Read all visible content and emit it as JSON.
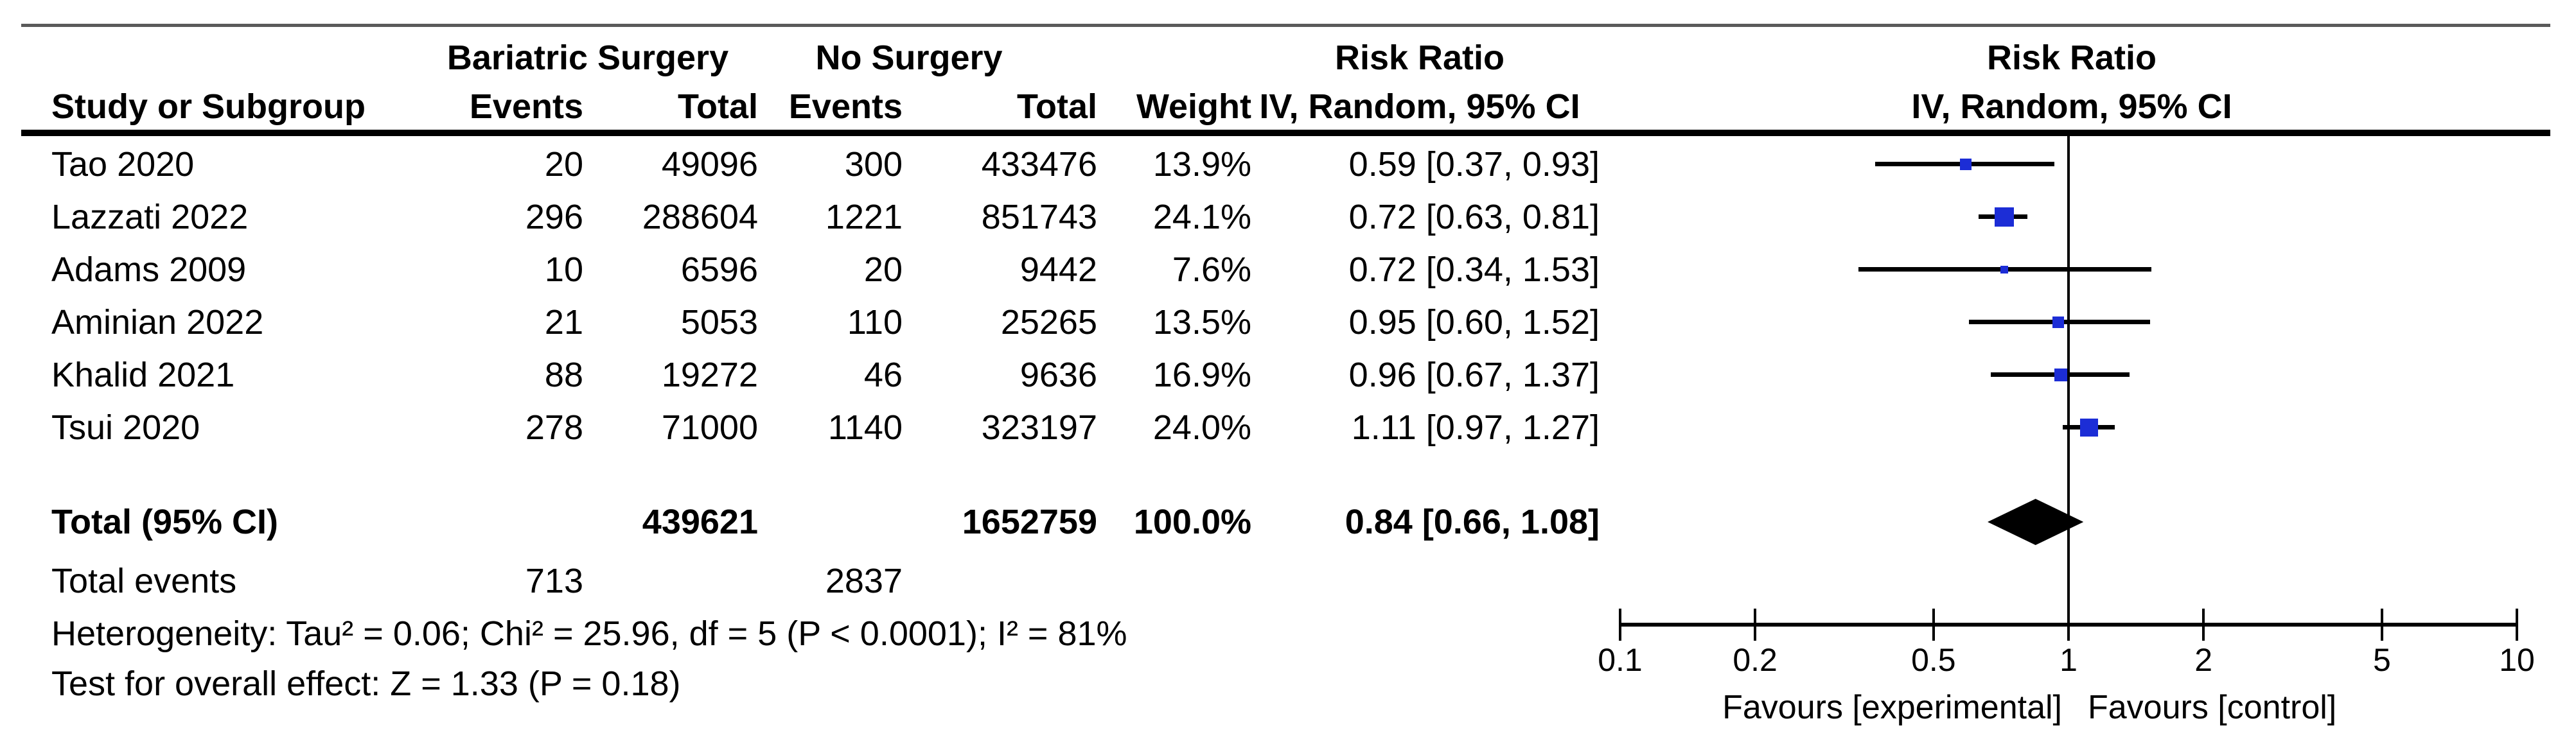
{
  "figure": {
    "background": "#ffffff",
    "marker_color": "#1c2dd6",
    "line_color": "#000000",
    "top_rule_color": "#5a5a5a"
  },
  "header": {
    "group1_label": "Bariatric Surgery",
    "group2_label": "No Surgery",
    "risk_ratio_label": "Risk Ratio",
    "method_label": "IV, Random, 95% CI",
    "plot_risk_ratio_label": "Risk Ratio",
    "plot_method_label": "IV, Random, 95% CI",
    "study_col_label": "Study or Subgroup",
    "events_col_label": "Events",
    "total_col_label": "Total",
    "weight_col_label": "Weight"
  },
  "chart_data": {
    "type": "forest",
    "x_scale": "log10",
    "xlim": [
      0.1,
      10
    ],
    "axis_ticks": [
      "0.1",
      "0.2",
      "0.5",
      "1",
      "2",
      "5",
      "10"
    ],
    "axis_tick_values": [
      0.1,
      0.2,
      0.5,
      1,
      2,
      5,
      10
    ],
    "favours_left": "Favours [experimental]",
    "favours_right": "Favours [control]",
    "studies": [
      {
        "name": "Tao 2020",
        "events1": "20",
        "total1": "49096",
        "events2": "300",
        "total2": "433476",
        "weight": "13.9%",
        "rr_ci": "0.59 [0.37, 0.93]",
        "rr": 0.59,
        "lo": 0.37,
        "hi": 0.93,
        "marker_size": 18
      },
      {
        "name": "Lazzati 2022",
        "events1": "296",
        "total1": "288604",
        "events2": "1221",
        "total2": "851743",
        "weight": "24.1%",
        "rr_ci": "0.72 [0.63, 0.81]",
        "rr": 0.72,
        "lo": 0.63,
        "hi": 0.81,
        "marker_size": 30
      },
      {
        "name": "Adams 2009",
        "events1": "10",
        "total1": "6596",
        "events2": "20",
        "total2": "9442",
        "weight": "7.6%",
        "rr_ci": "0.72 [0.34, 1.53]",
        "rr": 0.72,
        "lo": 0.34,
        "hi": 1.53,
        "marker_size": 12
      },
      {
        "name": "Aminian 2022",
        "events1": "21",
        "total1": "5053",
        "events2": "110",
        "total2": "25265",
        "weight": "13.5%",
        "rr_ci": "0.95 [0.60, 1.52]",
        "rr": 0.95,
        "lo": 0.6,
        "hi": 1.52,
        "marker_size": 18
      },
      {
        "name": "Khalid 2021",
        "events1": "88",
        "total1": "19272",
        "events2": "46",
        "total2": "9636",
        "weight": "16.9%",
        "rr_ci": "0.96 [0.67, 1.37]",
        "rr": 0.96,
        "lo": 0.67,
        "hi": 1.37,
        "marker_size": 20
      },
      {
        "name": "Tsui 2020",
        "events1": "278",
        "total1": "71000",
        "events2": "1140",
        "total2": "323197",
        "weight": "24.0%",
        "rr_ci": "1.11 [0.97, 1.27]",
        "rr": 1.11,
        "lo": 0.97,
        "hi": 1.27,
        "marker_size": 28
      }
    ],
    "total_row": {
      "label": "Total (95% CI)",
      "total1": "439621",
      "total2": "1652759",
      "weight": "100.0%",
      "rr_ci": "0.84 [0.66, 1.08]",
      "rr": 0.84,
      "lo": 0.66,
      "hi": 1.08
    },
    "total_events": {
      "label": "Total events",
      "events1": "713",
      "events2": "2837"
    },
    "heterogeneity": "Heterogeneity: Tau² = 0.06; Chi² = 25.96, df = 5 (P < 0.0001); I² = 81%",
    "overall_effect": "Test for overall effect: Z = 1.33 (P = 0.18)"
  }
}
